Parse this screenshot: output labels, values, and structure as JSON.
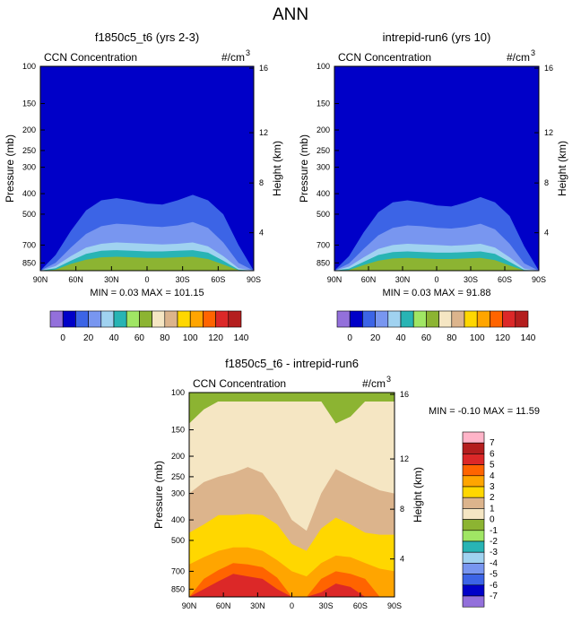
{
  "figure": {
    "main_title": "ANN"
  },
  "colors": {
    "ccn_levels": [
      "#9370db",
      "#0000c8",
      "#3c64e6",
      "#7896f0",
      "#a0d2f0",
      "#28b4b4",
      "#a0e664",
      "#8cb432",
      "#f5e6c3",
      "#dcb48c",
      "#ffd700",
      "#ffa500",
      "#ff6400",
      "#dc2828",
      "#b41e1e",
      "#ffb4c8",
      "#ff1493"
    ],
    "diff_levels": [
      "#9370db",
      "#0000c8",
      "#3c64e6",
      "#7896f0",
      "#a0d2f0",
      "#28b4b4",
      "#a0e664",
      "#8cb432",
      "#f5e6c3",
      "#dcb48c",
      "#ffd700",
      "#ffa500",
      "#ff6400",
      "#dc2828",
      "#b41e1e",
      "#ffb4c8",
      "#ff1493"
    ]
  },
  "chart_data": [
    {
      "type": "heatmap",
      "title": "f1850c5_t6 (yrs 2-3)",
      "left_label": "CCN Concentration",
      "units": "#/cm",
      "units_superscript": "3",
      "ylabel": "Pressure (mb)",
      "ylabel_right": "Height (km)",
      "x_ticks": [
        "90N",
        "60N",
        "30N",
        "0",
        "30S",
        "60S",
        "90S"
      ],
      "y_ticks": [
        100,
        150,
        200,
        250,
        300,
        400,
        500,
        700,
        850
      ],
      "y_ticks_right": [
        16,
        12,
        8,
        4
      ],
      "ylim": [
        100,
        925
      ],
      "scale": "log",
      "stats_text": "MIN =  0.03  MAX = 101.15",
      "contour_levels_label": [
        "0",
        "20",
        "40",
        "60",
        "80",
        "100",
        "120",
        "140"
      ],
      "bands": [
        {
          "level": "<20",
          "top_pressure": [
            925,
            780,
            600,
            480,
            430,
            420,
            430,
            445,
            450,
            430,
            405,
            430,
            500,
            700,
            925
          ]
        },
        {
          "level": "20-40",
          "top_pressure": [
            925,
            850,
            720,
            620,
            570,
            555,
            560,
            570,
            575,
            565,
            545,
            580,
            680,
            850,
            925
          ]
        },
        {
          "level": "40-60",
          "top_pressure": [
            925,
            880,
            790,
            720,
            690,
            680,
            685,
            690,
            695,
            690,
            680,
            710,
            790,
            900,
            925
          ]
        },
        {
          "level": "60-80",
          "top_pressure": [
            925,
            900,
            830,
            770,
            745,
            740,
            745,
            750,
            750,
            745,
            740,
            760,
            830,
            915,
            925
          ]
        },
        {
          "level": "80-100",
          "top_pressure": [
            925,
            915,
            860,
            820,
            800,
            795,
            800,
            805,
            805,
            800,
            795,
            815,
            865,
            920,
            925
          ]
        }
      ]
    },
    {
      "type": "heatmap",
      "title": "intrepid-run6 (yrs 10)",
      "left_label": "CCN Concentration",
      "units": "#/cm",
      "units_superscript": "3",
      "ylabel": "Pressure (mb)",
      "ylabel_right": "Height (km)",
      "x_ticks": [
        "90N",
        "60N",
        "30N",
        "0",
        "30S",
        "60S",
        "90S"
      ],
      "y_ticks": [
        100,
        150,
        200,
        250,
        300,
        400,
        500,
        700,
        850
      ],
      "y_ticks_right": [
        16,
        12,
        8,
        4
      ],
      "ylim": [
        100,
        925
      ],
      "scale": "log",
      "stats_text": "MIN =  0.03  MAX = 91.88",
      "contour_levels_label": [
        "0",
        "20",
        "40",
        "60",
        "80",
        "100",
        "120",
        "140"
      ],
      "bands": [
        {
          "level": "<20",
          "top_pressure": [
            925,
            790,
            610,
            490,
            440,
            430,
            440,
            455,
            460,
            440,
            415,
            440,
            510,
            710,
            925
          ]
        },
        {
          "level": "20-40",
          "top_pressure": [
            925,
            855,
            730,
            630,
            580,
            565,
            570,
            580,
            585,
            575,
            555,
            590,
            690,
            855,
            925
          ]
        },
        {
          "level": "40-60",
          "top_pressure": [
            925,
            885,
            800,
            730,
            700,
            690,
            695,
            700,
            705,
            700,
            690,
            720,
            800,
            905,
            925
          ]
        },
        {
          "level": "60-80",
          "top_pressure": [
            925,
            905,
            840,
            780,
            755,
            750,
            755,
            760,
            760,
            755,
            750,
            770,
            840,
            918,
            925
          ]
        },
        {
          "level": "80-100",
          "top_pressure": [
            925,
            918,
            870,
            830,
            810,
            805,
            810,
            815,
            815,
            810,
            805,
            825,
            875,
            922,
            925
          ]
        }
      ]
    },
    {
      "type": "heatmap",
      "title": "f1850c5_t6 - intrepid-run6",
      "left_label": "CCN Concentration",
      "units": "#/cm",
      "units_superscript": "3",
      "ylabel": "Pressure (mb)",
      "ylabel_right": "Height (km)",
      "x_ticks": [
        "90N",
        "60N",
        "30N",
        "0",
        "30S",
        "60S",
        "90S"
      ],
      "y_ticks": [
        100,
        150,
        200,
        250,
        300,
        400,
        500,
        700,
        850
      ],
      "y_ticks_right": [
        16,
        12,
        8,
        4
      ],
      "ylim": [
        100,
        925
      ],
      "scale": "log",
      "stats_text": "MIN =  -0.10  MAX =  11.59",
      "contour_levels_label": [
        "7",
        "6",
        "5",
        "4",
        "3",
        "2",
        "1",
        "0",
        "-1",
        "-2",
        "-3",
        "-4",
        "-5",
        "-6",
        "-7"
      ],
      "bands": [
        {
          "level": "1-2",
          "top_pressure": [
            300,
            265,
            250,
            240,
            225,
            240,
            300,
            400,
            450,
            300,
            230,
            250,
            270,
            290,
            300
          ]
        },
        {
          "level": "2-3",
          "top_pressure": [
            460,
            420,
            380,
            380,
            375,
            380,
            420,
            520,
            560,
            440,
            390,
            420,
            460,
            470,
            470
          ]
        },
        {
          "level": "3-4",
          "top_pressure": [
            650,
            600,
            560,
            540,
            540,
            560,
            620,
            700,
            740,
            640,
            590,
            600,
            640,
            680,
            700
          ]
        },
        {
          "level": "4-5",
          "top_pressure": [
            925,
            760,
            690,
            640,
            650,
            670,
            750,
            925,
            925,
            760,
            700,
            720,
            760,
            925,
            925
          ]
        },
        {
          "level": "5-6",
          "top_pressure": [
            925,
            850,
            780,
            720,
            740,
            760,
            850,
            925,
            925,
            880,
            800,
            830,
            925,
            925,
            925
          ]
        }
      ]
    }
  ]
}
